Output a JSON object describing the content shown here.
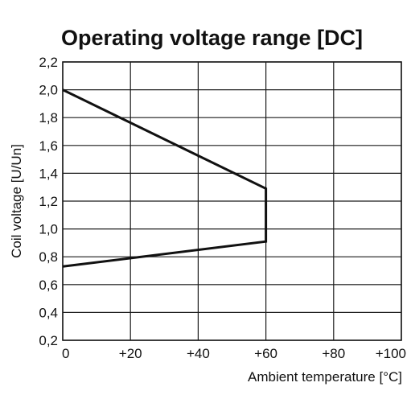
{
  "chart_data": {
    "type": "line",
    "title": "Operating voltage range [DC]",
    "xlabel": "Ambient temperature [°C]",
    "ylabel": "Coil voltage [U/Un]",
    "xlim": [
      0,
      100
    ],
    "ylim": [
      0.2,
      2.2
    ],
    "x_ticks": [
      0,
      20,
      40,
      60,
      80,
      100
    ],
    "x_tick_labels": [
      "0",
      "+20",
      "+40",
      "+60",
      "+80",
      "+100"
    ],
    "y_ticks": [
      0.2,
      0.4,
      0.6,
      0.8,
      1.0,
      1.2,
      1.4,
      1.6,
      1.8,
      2.0,
      2.2
    ],
    "y_tick_labels": [
      "0,2",
      "0,4",
      "0,6",
      "0,8",
      "1,0",
      "1,2",
      "1,4",
      "1,6",
      "1,8",
      "2,0",
      "2,2"
    ],
    "grid": true,
    "series": [
      {
        "color": "#111111",
        "points": [
          [
            0,
            2.0
          ],
          [
            60,
            1.29
          ],
          [
            60,
            0.91
          ],
          [
            0,
            0.73
          ]
        ]
      }
    ]
  }
}
